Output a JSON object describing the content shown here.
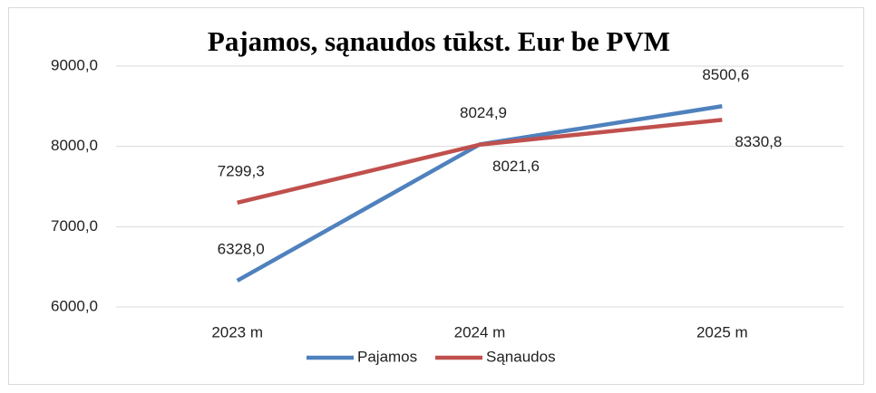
{
  "chart_data": {
    "type": "line",
    "title": "Pajamos, sąnaudos tūkst. Eur be PVM",
    "categories": [
      "2023 m",
      "2024 m",
      "2025 m"
    ],
    "series": [
      {
        "name": "Pajamos",
        "color": "#4f81bd",
        "values": [
          6328.0,
          8024.9,
          8500.6
        ],
        "value_labels": [
          "6328,0",
          "8024,9",
          "8500,6"
        ]
      },
      {
        "name": "Sąnaudos",
        "color": "#c0504d",
        "values": [
          7299.3,
          8021.6,
          8330.8
        ],
        "value_labels": [
          "7299,3",
          "8021,6",
          "8330,8"
        ]
      }
    ],
    "ylim": [
      6000,
      9000
    ],
    "yticks": [
      {
        "value": 6000,
        "label": "6000,0"
      },
      {
        "value": 7000,
        "label": "7000,0"
      },
      {
        "value": 8000,
        "label": "8000,0"
      },
      {
        "value": 9000,
        "label": "9000,0"
      }
    ],
    "grid": true,
    "legend": "bottom"
  }
}
